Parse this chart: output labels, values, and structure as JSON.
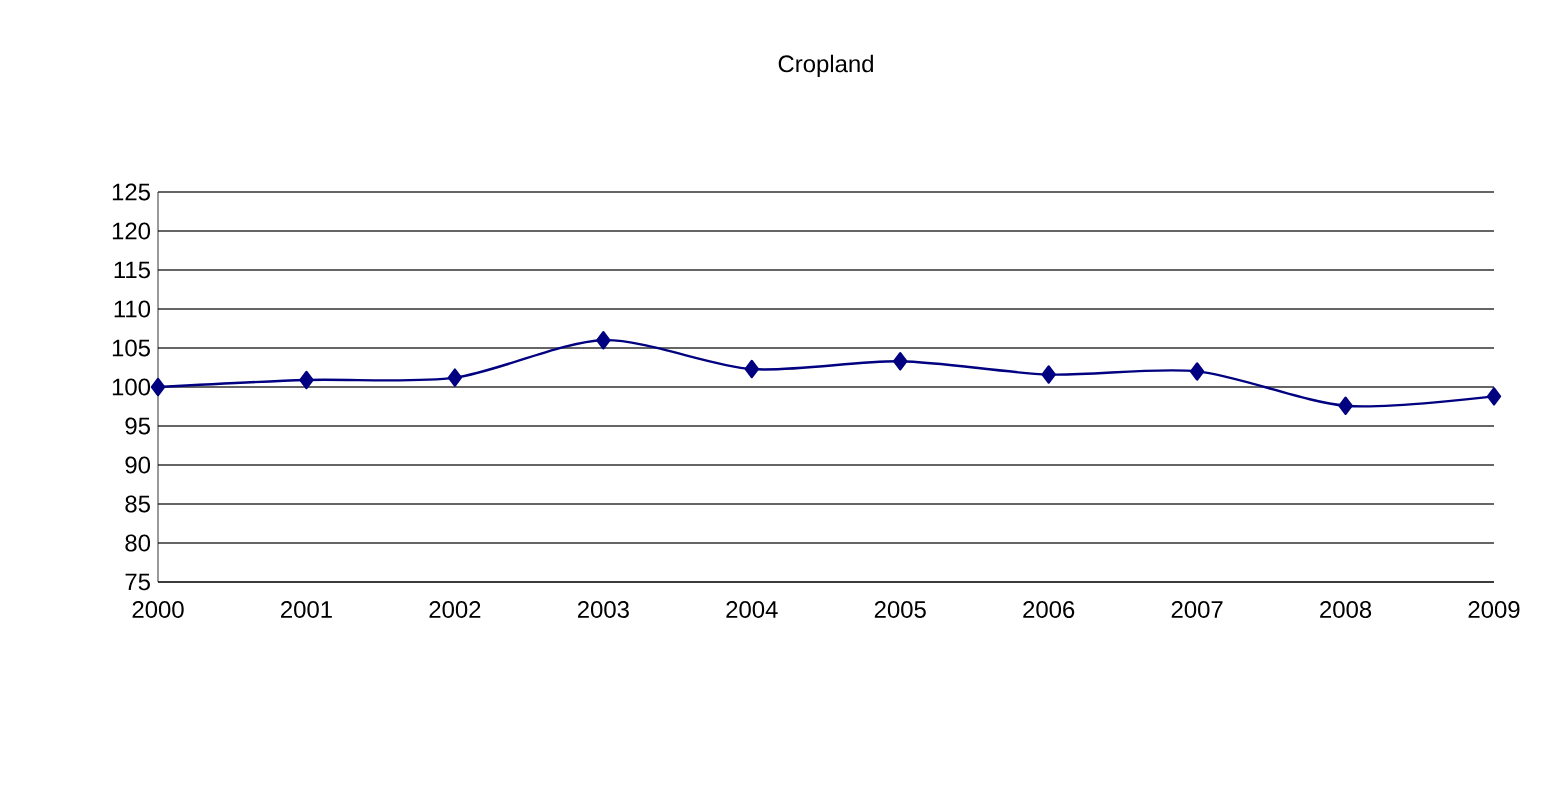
{
  "chart_data": {
    "type": "line",
    "title": "Cropland",
    "categories": [
      "2000",
      "2001",
      "2002",
      "2003",
      "2004",
      "2005",
      "2006",
      "2007",
      "2008",
      "2009"
    ],
    "series": [
      {
        "color": "#000080",
        "values": [
          100,
          100.9,
          101.2,
          106.0,
          102.3,
          103.3,
          101.6,
          102.0,
          97.6,
          98.8
        ]
      }
    ],
    "ylim": [
      75,
      125
    ],
    "yticks": [
      75,
      80,
      85,
      90,
      95,
      100,
      105,
      110,
      115,
      120,
      125
    ],
    "grid": "y",
    "marker": "diamond",
    "line_style": "solid"
  }
}
